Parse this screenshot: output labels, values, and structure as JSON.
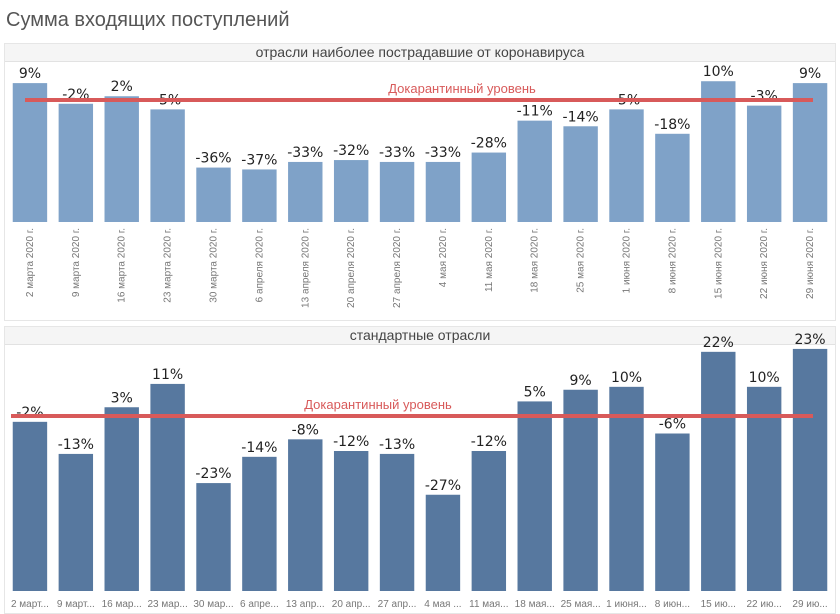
{
  "page": {
    "title": "Сумма входящих поступлений"
  },
  "colors": {
    "panel1_bar": "#7fa2c8",
    "panel2_bar": "#57789f",
    "reference_line": "#d85a5a"
  },
  "chart_data": [
    {
      "type": "bar",
      "title": "отрасли наиболее пострадавшие от коронавируса",
      "xlabel": "",
      "ylabel": "",
      "ylim": [
        -65,
        12
      ],
      "reference_line": {
        "label": "Докарантинный уровень",
        "value": 0
      },
      "categories": [
        "2 марта 2020 г.",
        "9 марта 2020 г.",
        "16 марта 2020 г.",
        "23 марта 2020 г.",
        "30 марта 2020 г.",
        "6 апреля 2020 г.",
        "13 апреля 2020 г.",
        "20 апреля 2020 г.",
        "27 апреля 2020 г.",
        "4 мая 2020 г.",
        "11 мая 2020 г.",
        "18 мая 2020 г.",
        "25 мая 2020 г.",
        "1 июня 2020 г.",
        "8 июня 2020 г.",
        "15 июня 2020 г.",
        "22 июня 2020 г.",
        "29 июня 2020 г."
      ],
      "values": [
        9,
        -2,
        2,
        -5,
        -36,
        -37,
        -33,
        -32,
        -33,
        -33,
        -28,
        -11,
        -14,
        -5,
        -18,
        10,
        -3,
        9
      ],
      "labels": [
        "9%",
        "-2%",
        "2%",
        "-5%",
        "-36%",
        "-37%",
        "-33%",
        "-32%",
        "-33%",
        "-33%",
        "-28%",
        "-11%",
        "-14%",
        "-5%",
        "-18%",
        "10%",
        "-3%",
        "9%"
      ]
    },
    {
      "type": "bar",
      "title": "стандартные отрасли",
      "xlabel": "",
      "ylabel": "",
      "ylim": [
        -60,
        24
      ],
      "reference_line": {
        "label": "Докарантинный уровень",
        "value": 0
      },
      "categories": [
        "2 март...",
        "9 март...",
        "16 мар...",
        "23 мар...",
        "30 мар...",
        "6 апре...",
        "13 апр...",
        "20 апр...",
        "27 апр...",
        "4 мая ...",
        "11 мая...",
        "18 мая...",
        "25 мая...",
        "1 июня...",
        "8 июн...",
        "15 ию...",
        "22 ию...",
        "29 ию..."
      ],
      "values": [
        -2,
        -13,
        3,
        11,
        -23,
        -14,
        -8,
        -12,
        -13,
        -27,
        -12,
        5,
        9,
        10,
        -6,
        22,
        10,
        23
      ],
      "labels": [
        "-2%",
        "-13%",
        "3%",
        "11%",
        "-23%",
        "-14%",
        "-8%",
        "-12%",
        "-13%",
        "-27%",
        "-12%",
        "5%",
        "9%",
        "10%",
        "-6%",
        "22%",
        "10%",
        "23%"
      ]
    }
  ]
}
